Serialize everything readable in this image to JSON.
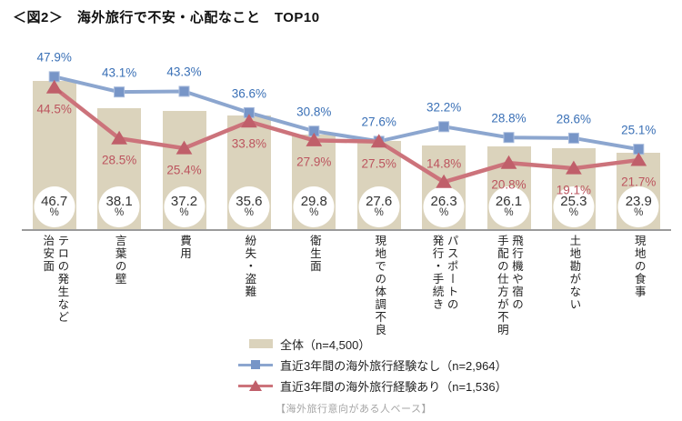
{
  "title": "＜図2＞　海外旅行で不安・心配なこと　TOP10",
  "footer_note": "【海外旅行意向がある人ベース】",
  "chart_data": {
    "type": "bar",
    "subtype": "bar-and-line-combo",
    "value_suffix": "%",
    "ylim": [
      0,
      56
    ],
    "grid": false,
    "legend_position": "bottom",
    "categories": [
      "治安面（テロの発生など）",
      "言葉の壁",
      "費用",
      "紛失・盗難",
      "衛生面",
      "現地での体調不良",
      "パスポートの発行・手続き",
      "飛行機や宿の手配の仕方が不明",
      "土地勘がない",
      "現地の食事"
    ],
    "category_display_lines": [
      [
        "治安面",
        "テロの発生など"
      ],
      [
        "言葉の壁"
      ],
      [
        "費用"
      ],
      [
        "紛失・盗難"
      ],
      [
        "衛生面"
      ],
      [
        "現地での体調不良"
      ],
      [
        "発行・手続き",
        "パスポートの"
      ],
      [
        "手配の仕方が不明",
        "飛行機や宿の"
      ],
      [
        "土地勘がない"
      ],
      [
        "現地の食事"
      ]
    ],
    "series": [
      {
        "name": "全体（n=4,500）",
        "type": "bar",
        "color": "#dbd3bc",
        "values": [
          46.7,
          38.1,
          37.2,
          35.6,
          29.8,
          27.6,
          26.3,
          26.1,
          25.3,
          23.9
        ]
      },
      {
        "name": "直近3年間の海外旅行経験なし（n=2,964）",
        "type": "line",
        "marker": "square",
        "line_color": "#8ca6cf",
        "marker_color": "#7795c7",
        "marker_edge": "#a9bcdc",
        "label_color": "#3a70b6",
        "values": [
          47.9,
          43.1,
          43.3,
          36.6,
          30.8,
          27.6,
          32.2,
          28.8,
          28.6,
          25.1
        ],
        "label_positions": [
          "above",
          "above",
          "above",
          "above",
          "above",
          "above",
          "above",
          "above",
          "above",
          "above"
        ]
      },
      {
        "name": "直近3年間の海外旅行経験あり（n=1,536）",
        "type": "line",
        "marker": "triangle",
        "line_color": "#cc737b",
        "marker_color": "#c05f6a",
        "marker_edge": "#c05f6a",
        "label_color": "#bc545e",
        "values": [
          44.5,
          28.5,
          25.4,
          33.8,
          27.9,
          27.5,
          14.8,
          20.8,
          19.1,
          21.7
        ],
        "label_positions": [
          "below",
          "below",
          "below",
          "below",
          "below",
          "below",
          "above",
          "below",
          "below",
          "below"
        ]
      }
    ]
  }
}
